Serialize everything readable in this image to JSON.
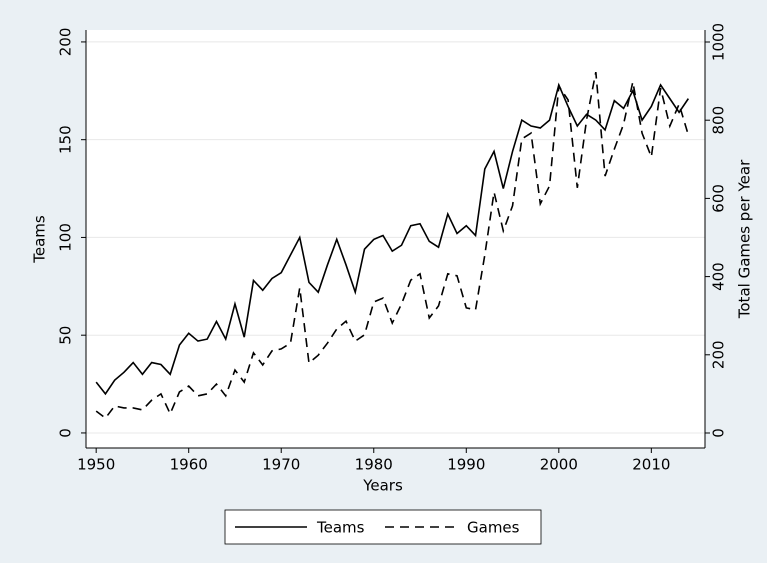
{
  "chart_data": {
    "type": "line",
    "x": [
      1950,
      1951,
      1952,
      1953,
      1954,
      1955,
      1956,
      1957,
      1958,
      1959,
      1960,
      1961,
      1962,
      1963,
      1964,
      1965,
      1966,
      1967,
      1968,
      1969,
      1970,
      1971,
      1972,
      1973,
      1974,
      1975,
      1976,
      1977,
      1978,
      1979,
      1980,
      1981,
      1982,
      1983,
      1984,
      1985,
      1986,
      1987,
      1988,
      1989,
      1990,
      1991,
      1992,
      1993,
      1994,
      1995,
      1996,
      1997,
      1998,
      1999,
      2000,
      2001,
      2002,
      2003,
      2004,
      2005,
      2006,
      2007,
      2008,
      2009,
      2010,
      2011,
      2012,
      2013,
      2014
    ],
    "series": [
      {
        "name": "Teams",
        "color": "#000000",
        "dash": false,
        "axis": "y",
        "values": [
          26,
          20,
          27,
          31,
          36,
          30,
          36,
          35,
          30,
          45,
          51,
          47,
          48,
          57,
          48,
          66,
          49,
          78,
          73,
          79,
          82,
          91,
          100,
          77,
          72,
          86,
          99,
          86,
          72,
          94,
          99,
          101,
          93,
          96,
          106,
          107,
          98,
          95,
          112,
          102,
          106,
          101,
          135,
          144,
          125,
          144,
          160,
          157,
          156,
          160,
          178,
          167,
          157,
          163,
          160,
          155,
          170,
          166,
          175,
          160,
          167,
          178,
          171,
          164,
          171
        ]
      },
      {
        "name": "Games",
        "color": "#000000",
        "dash": true,
        "axis": "y2",
        "values": [
          56,
          38,
          69,
          64,
          64,
          59,
          84,
          100,
          49,
          105,
          120,
          95,
          100,
          125,
          95,
          161,
          130,
          205,
          174,
          210,
          215,
          230,
          371,
          179,
          199,
          230,
          266,
          286,
          235,
          251,
          335,
          345,
          281,
          330,
          391,
          407,
          294,
          325,
          407,
          402,
          320,
          315,
          455,
          616,
          517,
          581,
          752,
          767,
          586,
          632,
          887,
          852,
          627,
          801,
          923,
          657,
          726,
          790,
          898,
          767,
          706,
          882,
          785,
          841,
          762
        ]
      }
    ],
    "xlabel": "Years",
    "ylabel": "Teams",
    "y2label": "Total Games per Year",
    "xlim": [
      1948.9,
      2015.8
    ],
    "xticks": [
      1950,
      1960,
      1970,
      1980,
      1990,
      2000,
      2010
    ],
    "ylim": [
      -7.7,
      206.1
    ],
    "yticks": [
      0,
      50,
      100,
      150,
      200
    ],
    "y2lim": [
      -38.4,
      1030.7
    ],
    "y2ticks": [
      0,
      200,
      400,
      600,
      800,
      1000
    ],
    "grid": true,
    "legend": "bottom"
  }
}
